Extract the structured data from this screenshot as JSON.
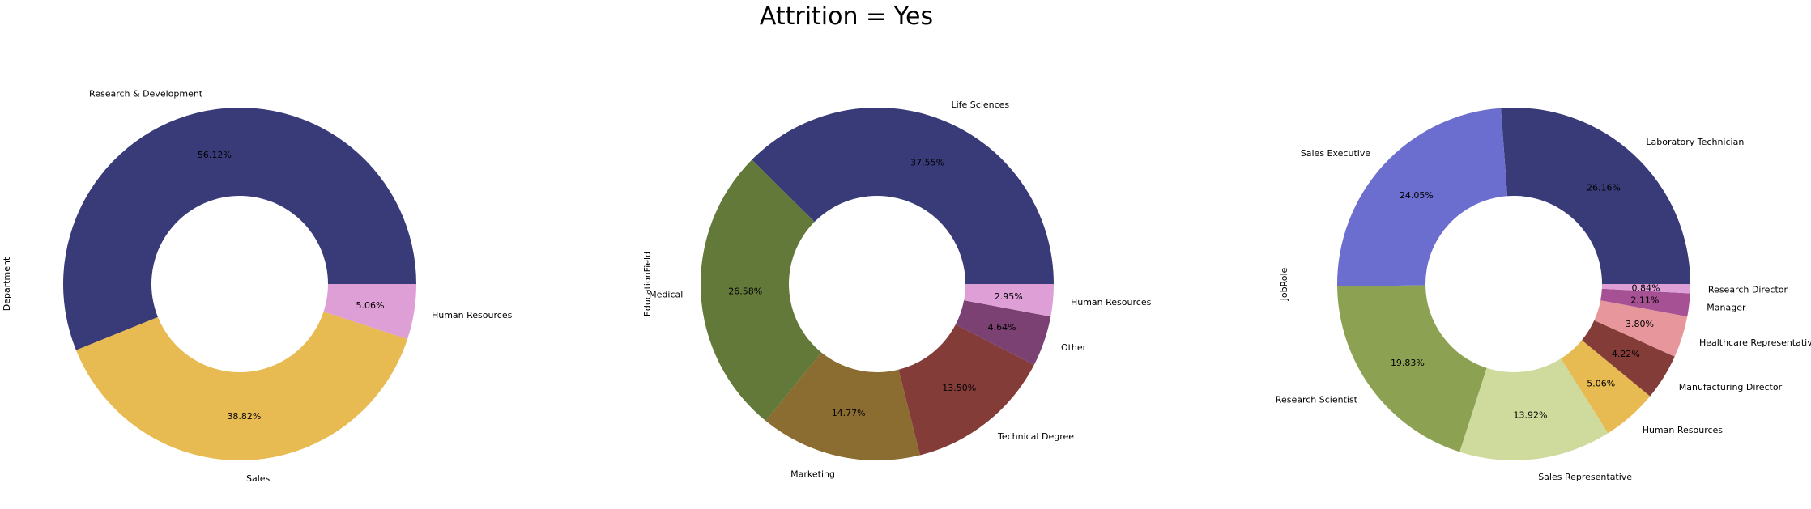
{
  "title": "Attrition = Yes",
  "chart_data": [
    {
      "type": "pie",
      "donut": true,
      "ylabel": "Department",
      "categories": [
        "Research & Development",
        "Sales",
        "Human Resources"
      ],
      "values": [
        56.12,
        38.82,
        5.06
      ],
      "pct_labels": [
        "56.12%",
        "38.82%",
        "5.06%"
      ],
      "colors": [
        "#393b79",
        "#e7ba52",
        "#de9ed6"
      ]
    },
    {
      "type": "pie",
      "donut": true,
      "ylabel": "EducationField",
      "categories": [
        "Life Sciences",
        "Medical",
        "Marketing",
        "Technical Degree",
        "Other",
        "Human Resources"
      ],
      "values": [
        37.55,
        26.58,
        14.77,
        13.5,
        4.64,
        2.95
      ],
      "pct_labels": [
        "37.55%",
        "26.58%",
        "14.77%",
        "13.50%",
        "4.64%",
        "2.95%"
      ],
      "colors": [
        "#393b79",
        "#637939",
        "#8c6d31",
        "#843c39",
        "#7b4173",
        "#de9ed6"
      ]
    },
    {
      "type": "pie",
      "donut": true,
      "ylabel": "JobRole",
      "categories": [
        "Laboratory Technician",
        "Sales Executive",
        "Research Scientist",
        "Sales Representative",
        "Human Resources",
        "Manufacturing Director",
        "Healthcare Representative",
        "Manager",
        "Research Director"
      ],
      "values": [
        26.16,
        24.05,
        19.83,
        13.92,
        5.06,
        4.22,
        3.8,
        2.11,
        0.84
      ],
      "pct_labels": [
        "26.16%",
        "24.05%",
        "19.83%",
        "13.92%",
        "5.06%",
        "4.22%",
        "3.80%",
        "2.11%",
        "0.84%"
      ],
      "colors": [
        "#393b79",
        "#6b6ecf",
        "#8ca252",
        "#cedb9c",
        "#e7ba52",
        "#843c39",
        "#e7969c",
        "#a55194",
        "#de9ed6"
      ]
    }
  ]
}
